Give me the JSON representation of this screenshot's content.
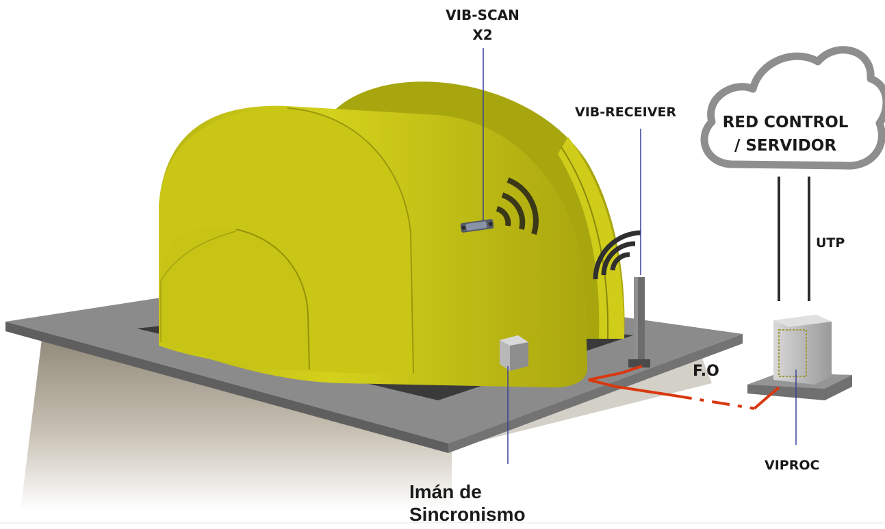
{
  "labels": {
    "vib_scan_line1": "VIB-SCAN",
    "vib_scan_line2": "X2",
    "vib_receiver": "VIB-RECEIVER",
    "cloud_line1": "RED CONTROL",
    "cloud_line2": "/ SERVIDOR",
    "utp": "UTP",
    "fiber": "F.O",
    "viproc": "VIPROC",
    "magnet_line1": "Imán de",
    "magnet_line2": "Sincronismo"
  },
  "colors": {
    "drum": "#c9c616",
    "drum_dark": "#a8a60f",
    "platform": "#8b8b8b",
    "fiber_line": "#d9380f",
    "leader_line": "#3b3f9a",
    "cloud_stroke": "#8e8e8e"
  }
}
